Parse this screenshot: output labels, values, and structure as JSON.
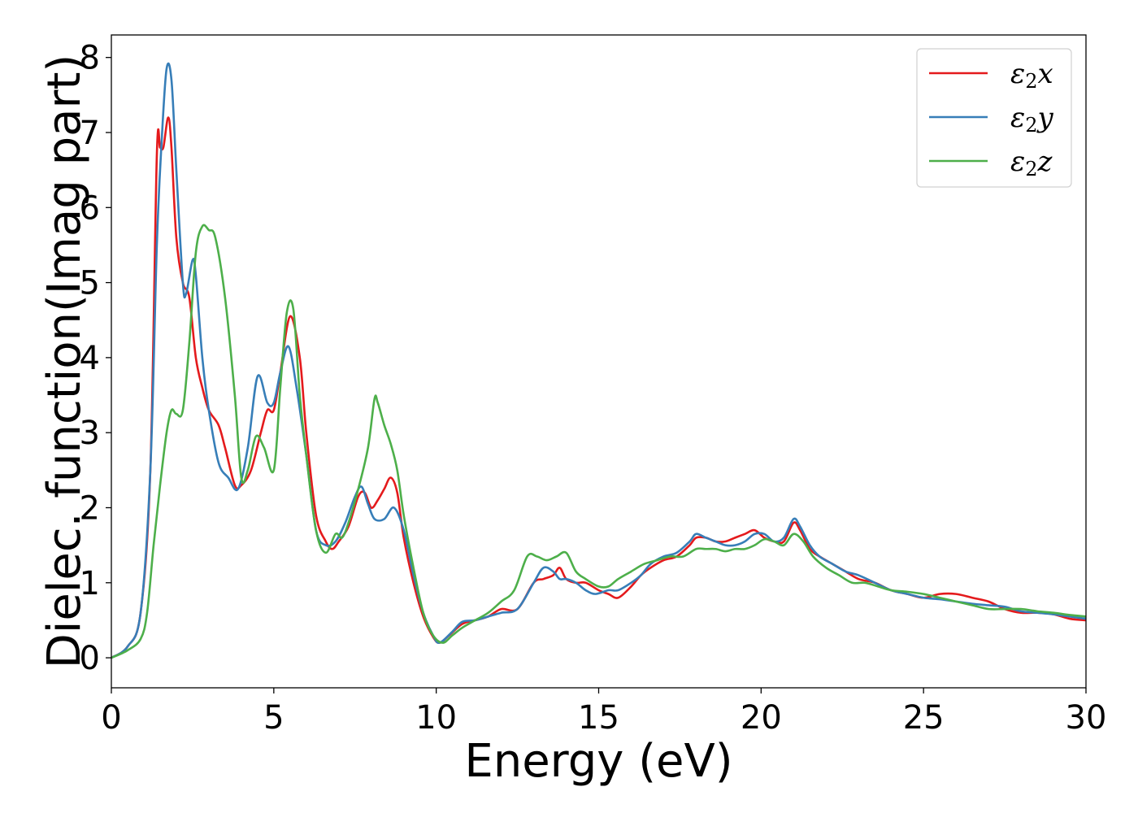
{
  "chart_data": {
    "type": "line",
    "xlabel": "Energy (eV)",
    "ylabel": "Dielec. function(Imag part)",
    "xlim": [
      0,
      30
    ],
    "ylim": [
      -0.4,
      8.3
    ],
    "xticks": [
      0,
      5,
      10,
      15,
      20,
      25,
      30
    ],
    "yticks": [
      0,
      1,
      2,
      3,
      4,
      5,
      6,
      7,
      8
    ],
    "grid": false,
    "legend_position": "top-right",
    "series": [
      {
        "name": "ε2x",
        "legend_base": "ε",
        "legend_sub": "2",
        "legend_var": "x",
        "color": "#e41a1c",
        "x": [
          0,
          0.5,
          0.9,
          1.2,
          1.4,
          1.5,
          1.6,
          1.75,
          1.85,
          2.0,
          2.2,
          2.4,
          2.6,
          2.8,
          3.0,
          3.3,
          3.5,
          3.8,
          4.0,
          4.3,
          4.6,
          4.8,
          5.0,
          5.2,
          5.5,
          5.8,
          6.0,
          6.3,
          6.6,
          6.8,
          7.0,
          7.3,
          7.6,
          7.8,
          8.0,
          8.2,
          8.4,
          8.6,
          8.8,
          9.0,
          9.3,
          9.6,
          9.9,
          10.1,
          10.4,
          10.8,
          11.2,
          11.6,
          12.0,
          12.5,
          13.0,
          13.3,
          13.6,
          13.8,
          14.0,
          14.3,
          14.6,
          15.0,
          15.3,
          15.6,
          16.0,
          16.3,
          16.6,
          17.0,
          17.4,
          17.8,
          18.0,
          18.3,
          18.6,
          18.9,
          19.2,
          19.5,
          19.8,
          20.1,
          20.4,
          20.7,
          21.0,
          21.2,
          21.5,
          21.8,
          22.2,
          22.6,
          23.0,
          23.5,
          24.0,
          24.5,
          25.0,
          25.5,
          26.0,
          26.5,
          27.0,
          27.5,
          28.0,
          28.5,
          29.0,
          29.5,
          30.0
        ],
        "values": [
          0.0,
          0.15,
          0.6,
          2.5,
          6.7,
          6.8,
          6.8,
          7.2,
          6.8,
          5.6,
          5.0,
          4.8,
          4.0,
          3.6,
          3.3,
          3.1,
          2.8,
          2.3,
          2.3,
          2.5,
          3.0,
          3.3,
          3.3,
          3.8,
          4.55,
          4.0,
          3.0,
          1.9,
          1.55,
          1.45,
          1.55,
          1.75,
          2.15,
          2.2,
          2.0,
          2.1,
          2.25,
          2.4,
          2.2,
          1.6,
          1.0,
          0.55,
          0.28,
          0.2,
          0.3,
          0.45,
          0.5,
          0.55,
          0.65,
          0.65,
          1.0,
          1.05,
          1.1,
          1.2,
          1.05,
          1.0,
          1.0,
          0.9,
          0.85,
          0.8,
          0.95,
          1.1,
          1.2,
          1.3,
          1.35,
          1.5,
          1.6,
          1.6,
          1.55,
          1.55,
          1.6,
          1.65,
          1.7,
          1.6,
          1.55,
          1.55,
          1.8,
          1.7,
          1.45,
          1.35,
          1.25,
          1.15,
          1.05,
          1.0,
          0.9,
          0.85,
          0.8,
          0.85,
          0.85,
          0.8,
          0.75,
          0.65,
          0.6,
          0.6,
          0.58,
          0.52,
          0.5
        ]
      },
      {
        "name": "ε2y",
        "legend_base": "ε",
        "legend_sub": "2",
        "legend_var": "y",
        "color": "#377eb8",
        "x": [
          0,
          0.5,
          0.9,
          1.2,
          1.4,
          1.55,
          1.7,
          1.85,
          2.0,
          2.2,
          2.3,
          2.5,
          2.6,
          2.8,
          3.0,
          3.3,
          3.6,
          3.9,
          4.2,
          4.5,
          4.8,
          5.0,
          5.2,
          5.45,
          5.7,
          6.0,
          6.3,
          6.6,
          6.9,
          7.2,
          7.5,
          7.7,
          7.9,
          8.1,
          8.4,
          8.7,
          9.0,
          9.3,
          9.6,
          9.9,
          10.1,
          10.5,
          10.8,
          11.2,
          11.6,
          12.0,
          12.5,
          13.0,
          13.3,
          13.6,
          13.8,
          14.0,
          14.3,
          14.6,
          14.9,
          15.3,
          15.6,
          16.0,
          16.3,
          16.6,
          17.0,
          17.4,
          17.8,
          18.0,
          18.3,
          18.6,
          18.9,
          19.2,
          19.5,
          19.8,
          20.1,
          20.4,
          20.7,
          21.0,
          21.2,
          21.5,
          21.8,
          22.2,
          22.6,
          23.0,
          23.5,
          24.0,
          24.5,
          25.0,
          25.5,
          26.0,
          26.5,
          27.0,
          27.5,
          28.0,
          28.5,
          29.0,
          29.5,
          30.0
        ],
        "values": [
          0.0,
          0.15,
          0.6,
          2.5,
          5.5,
          6.9,
          7.85,
          7.7,
          6.5,
          5.0,
          4.85,
          5.3,
          5.1,
          4.0,
          3.3,
          2.6,
          2.4,
          2.25,
          2.8,
          3.75,
          3.4,
          3.4,
          3.8,
          4.15,
          3.6,
          2.7,
          1.7,
          1.5,
          1.55,
          1.8,
          2.15,
          2.28,
          2.05,
          1.85,
          1.85,
          2.0,
          1.7,
          1.1,
          0.6,
          0.3,
          0.2,
          0.35,
          0.48,
          0.5,
          0.55,
          0.6,
          0.65,
          1.0,
          1.2,
          1.15,
          1.05,
          1.05,
          1.0,
          0.9,
          0.85,
          0.9,
          0.9,
          1.0,
          1.1,
          1.25,
          1.35,
          1.4,
          1.55,
          1.65,
          1.6,
          1.55,
          1.5,
          1.5,
          1.55,
          1.65,
          1.65,
          1.55,
          1.6,
          1.85,
          1.75,
          1.5,
          1.35,
          1.25,
          1.15,
          1.1,
          1.0,
          0.9,
          0.85,
          0.8,
          0.78,
          0.75,
          0.72,
          0.7,
          0.68,
          0.62,
          0.6,
          0.58,
          0.55,
          0.52
        ]
      },
      {
        "name": "ε2z",
        "legend_base": "ε",
        "legend_sub": "2",
        "legend_var": "z",
        "color": "#4daf4a",
        "x": [
          0,
          0.5,
          0.9,
          1.1,
          1.3,
          1.5,
          1.7,
          1.85,
          2.0,
          2.2,
          2.4,
          2.6,
          2.8,
          3.0,
          3.2,
          3.5,
          3.8,
          4.0,
          4.2,
          4.45,
          4.7,
          5.0,
          5.2,
          5.4,
          5.6,
          5.8,
          6.0,
          6.3,
          6.6,
          6.9,
          7.1,
          7.3,
          7.6,
          7.9,
          8.1,
          8.2,
          8.4,
          8.6,
          8.8,
          9.0,
          9.3,
          9.6,
          9.9,
          10.2,
          10.5,
          10.8,
          11.2,
          11.6,
          12.0,
          12.4,
          12.8,
          13.1,
          13.4,
          13.7,
          14.0,
          14.3,
          14.6,
          15.0,
          15.3,
          15.6,
          16.0,
          16.4,
          16.8,
          17.2,
          17.6,
          18.0,
          18.3,
          18.6,
          18.9,
          19.2,
          19.5,
          19.8,
          20.1,
          20.4,
          20.7,
          21.0,
          21.3,
          21.6,
          22.0,
          22.4,
          22.8,
          23.2,
          23.6,
          24.0,
          24.5,
          25.0,
          25.5,
          26.0,
          26.5,
          27.0,
          27.5,
          28.0,
          28.5,
          29.0,
          29.5,
          30.0
        ],
        "values": [
          0.0,
          0.1,
          0.25,
          0.6,
          1.5,
          2.3,
          3.0,
          3.3,
          3.25,
          3.3,
          4.2,
          5.4,
          5.75,
          5.7,
          5.6,
          4.8,
          3.5,
          2.4,
          2.5,
          2.95,
          2.8,
          2.5,
          3.6,
          4.6,
          4.65,
          3.5,
          2.7,
          1.7,
          1.4,
          1.65,
          1.6,
          1.8,
          2.25,
          2.8,
          3.45,
          3.4,
          3.1,
          2.85,
          2.5,
          1.9,
          1.2,
          0.6,
          0.3,
          0.2,
          0.3,
          0.4,
          0.5,
          0.6,
          0.75,
          0.9,
          1.35,
          1.35,
          1.3,
          1.35,
          1.4,
          1.15,
          1.05,
          0.95,
          0.95,
          1.05,
          1.15,
          1.25,
          1.3,
          1.35,
          1.35,
          1.45,
          1.45,
          1.45,
          1.42,
          1.45,
          1.45,
          1.5,
          1.58,
          1.55,
          1.5,
          1.65,
          1.55,
          1.35,
          1.2,
          1.1,
          1.0,
          1.0,
          0.95,
          0.9,
          0.88,
          0.85,
          0.8,
          0.75,
          0.7,
          0.65,
          0.65,
          0.65,
          0.62,
          0.6,
          0.57,
          0.55
        ]
      }
    ]
  }
}
